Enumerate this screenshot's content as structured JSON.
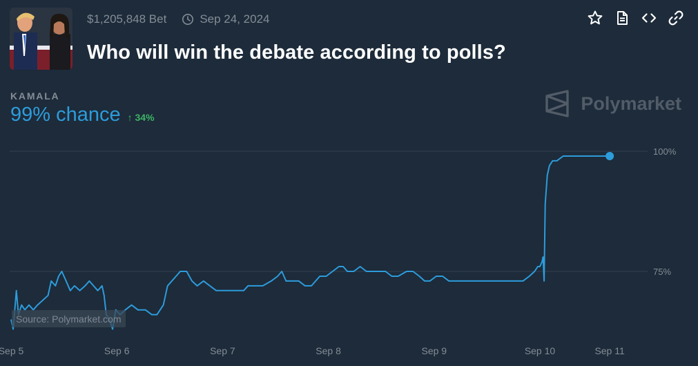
{
  "header": {
    "volume": "$1,205,848 Bet",
    "date": "Sep 24, 2024",
    "title": "Who will win the debate according to polls?"
  },
  "actions": [
    "star-icon",
    "document-icon",
    "code-icon",
    "link-icon"
  ],
  "outcome": {
    "label": "KAMALA",
    "chance": "99% chance",
    "change": "34%"
  },
  "brand": {
    "name": "Polymarket"
  },
  "source": "Source: Polymarket.com",
  "colors": {
    "background": "#1d2b3a",
    "line": "#2d9cdb",
    "up": "#3db468",
    "muted": "#858d96",
    "grid": "#35414f"
  },
  "chart_data": {
    "type": "line",
    "x_ticks": [
      {
        "label": "Sep 5",
        "t": 0
      },
      {
        "label": "Sep 6",
        "t": 1
      },
      {
        "label": "Sep 7",
        "t": 2
      },
      {
        "label": "Sep 8",
        "t": 3
      },
      {
        "label": "Sep 9",
        "t": 4
      },
      {
        "label": "Sep 10",
        "t": 5
      },
      {
        "label": "Sep 11",
        "t": 5.66
      }
    ],
    "y_ticks": [
      {
        "label": "100%",
        "value": 100
      },
      {
        "label": "75%",
        "value": 75
      }
    ],
    "grid": true,
    "series": [
      {
        "values": [
          [
            0.0,
            65
          ],
          [
            0.02,
            63
          ],
          [
            0.05,
            71
          ],
          [
            0.07,
            66
          ],
          [
            0.1,
            68
          ],
          [
            0.13,
            67
          ],
          [
            0.17,
            68
          ],
          [
            0.21,
            67
          ],
          [
            0.25,
            68
          ],
          [
            0.3,
            69
          ],
          [
            0.35,
            70
          ],
          [
            0.38,
            73
          ],
          [
            0.42,
            72
          ],
          [
            0.45,
            74
          ],
          [
            0.48,
            75
          ],
          [
            0.52,
            73
          ],
          [
            0.56,
            71
          ],
          [
            0.6,
            72
          ],
          [
            0.65,
            71
          ],
          [
            0.7,
            72
          ],
          [
            0.74,
            73
          ],
          [
            0.78,
            72
          ],
          [
            0.82,
            71
          ],
          [
            0.86,
            72
          ],
          [
            0.88,
            70
          ],
          [
            0.9,
            66
          ],
          [
            0.93,
            65
          ],
          [
            0.96,
            63
          ],
          [
            0.99,
            67
          ],
          [
            1.03,
            66
          ],
          [
            1.08,
            67
          ],
          [
            1.14,
            68
          ],
          [
            1.2,
            67
          ],
          [
            1.27,
            67
          ],
          [
            1.33,
            66
          ],
          [
            1.38,
            66
          ],
          [
            1.44,
            68
          ],
          [
            1.48,
            72
          ],
          [
            1.52,
            73
          ],
          [
            1.56,
            74
          ],
          [
            1.6,
            75
          ],
          [
            1.66,
            75
          ],
          [
            1.71,
            73
          ],
          [
            1.76,
            72
          ],
          [
            1.82,
            73
          ],
          [
            1.88,
            72
          ],
          [
            1.94,
            71
          ],
          [
            2.0,
            71
          ],
          [
            2.07,
            71
          ],
          [
            2.14,
            71
          ],
          [
            2.2,
            71
          ],
          [
            2.24,
            72
          ],
          [
            2.3,
            72
          ],
          [
            2.38,
            72
          ],
          [
            2.46,
            73
          ],
          [
            2.52,
            74
          ],
          [
            2.56,
            75
          ],
          [
            2.6,
            73
          ],
          [
            2.66,
            73
          ],
          [
            2.72,
            73
          ],
          [
            2.78,
            72
          ],
          [
            2.84,
            72
          ],
          [
            2.88,
            73
          ],
          [
            2.92,
            74
          ],
          [
            2.98,
            74
          ],
          [
            3.04,
            75
          ],
          [
            3.1,
            76
          ],
          [
            3.14,
            76
          ],
          [
            3.18,
            75
          ],
          [
            3.24,
            75
          ],
          [
            3.3,
            76
          ],
          [
            3.36,
            75
          ],
          [
            3.42,
            75
          ],
          [
            3.48,
            75
          ],
          [
            3.54,
            75
          ],
          [
            3.6,
            74
          ],
          [
            3.66,
            74
          ],
          [
            3.74,
            75
          ],
          [
            3.8,
            75
          ],
          [
            3.86,
            74
          ],
          [
            3.91,
            73
          ],
          [
            3.96,
            73
          ],
          [
            4.02,
            74
          ],
          [
            4.08,
            74
          ],
          [
            4.14,
            73
          ],
          [
            4.2,
            73
          ],
          [
            4.26,
            73
          ],
          [
            4.3,
            73
          ],
          [
            4.36,
            73
          ],
          [
            4.42,
            73
          ],
          [
            4.48,
            73
          ],
          [
            4.54,
            73
          ],
          [
            4.6,
            73
          ],
          [
            4.66,
            73
          ],
          [
            4.72,
            73
          ],
          [
            4.78,
            73
          ],
          [
            4.84,
            73
          ],
          [
            4.9,
            74
          ],
          [
            4.95,
            75
          ],
          [
            4.98,
            76
          ],
          [
            5.0,
            76
          ],
          [
            5.02,
            77
          ],
          [
            5.03,
            78
          ],
          [
            5.04,
            73
          ],
          [
            5.05,
            89
          ],
          [
            5.07,
            95
          ],
          [
            5.09,
            97
          ],
          [
            5.12,
            98
          ],
          [
            5.16,
            98
          ],
          [
            5.22,
            99
          ],
          [
            5.3,
            99
          ],
          [
            5.38,
            99
          ],
          [
            5.46,
            99
          ],
          [
            5.52,
            99
          ],
          [
            5.58,
            99
          ],
          [
            5.63,
            99
          ],
          [
            5.66,
            99
          ]
        ]
      }
    ]
  }
}
